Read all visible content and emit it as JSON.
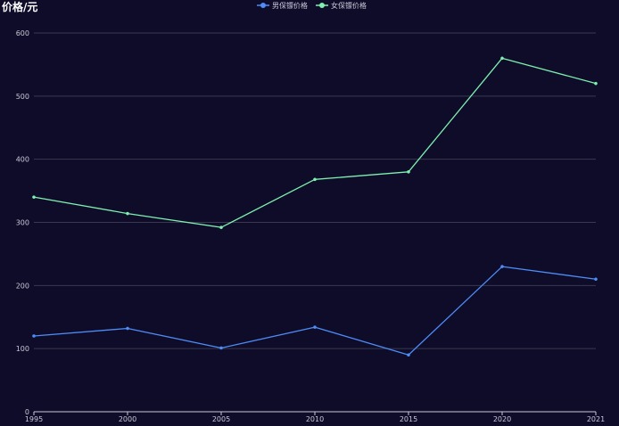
{
  "chart_data": {
    "type": "line",
    "ylabel": "价格/元",
    "x": [
      "1995",
      "2000",
      "2005",
      "2010",
      "2015",
      "2020",
      "2021"
    ],
    "ylim": [
      0,
      600
    ],
    "yticks": [
      0,
      100,
      200,
      300,
      400,
      500,
      600
    ],
    "grid": true,
    "legend_position": "top-center",
    "series": [
      {
        "name": "男保镖价格",
        "color": "#4e8cf7",
        "values": [
          120,
          132,
          101,
          134,
          90,
          230,
          210
        ]
      },
      {
        "name": "女保镖价格",
        "color": "#7ef0b0",
        "values": [
          340,
          314,
          292,
          368,
          380,
          560,
          520
        ]
      }
    ]
  },
  "colors": {
    "background": "#0e0c28",
    "grid": "#3a3850",
    "axis": "#c8c8d8",
    "text": "#c8c8d8"
  }
}
